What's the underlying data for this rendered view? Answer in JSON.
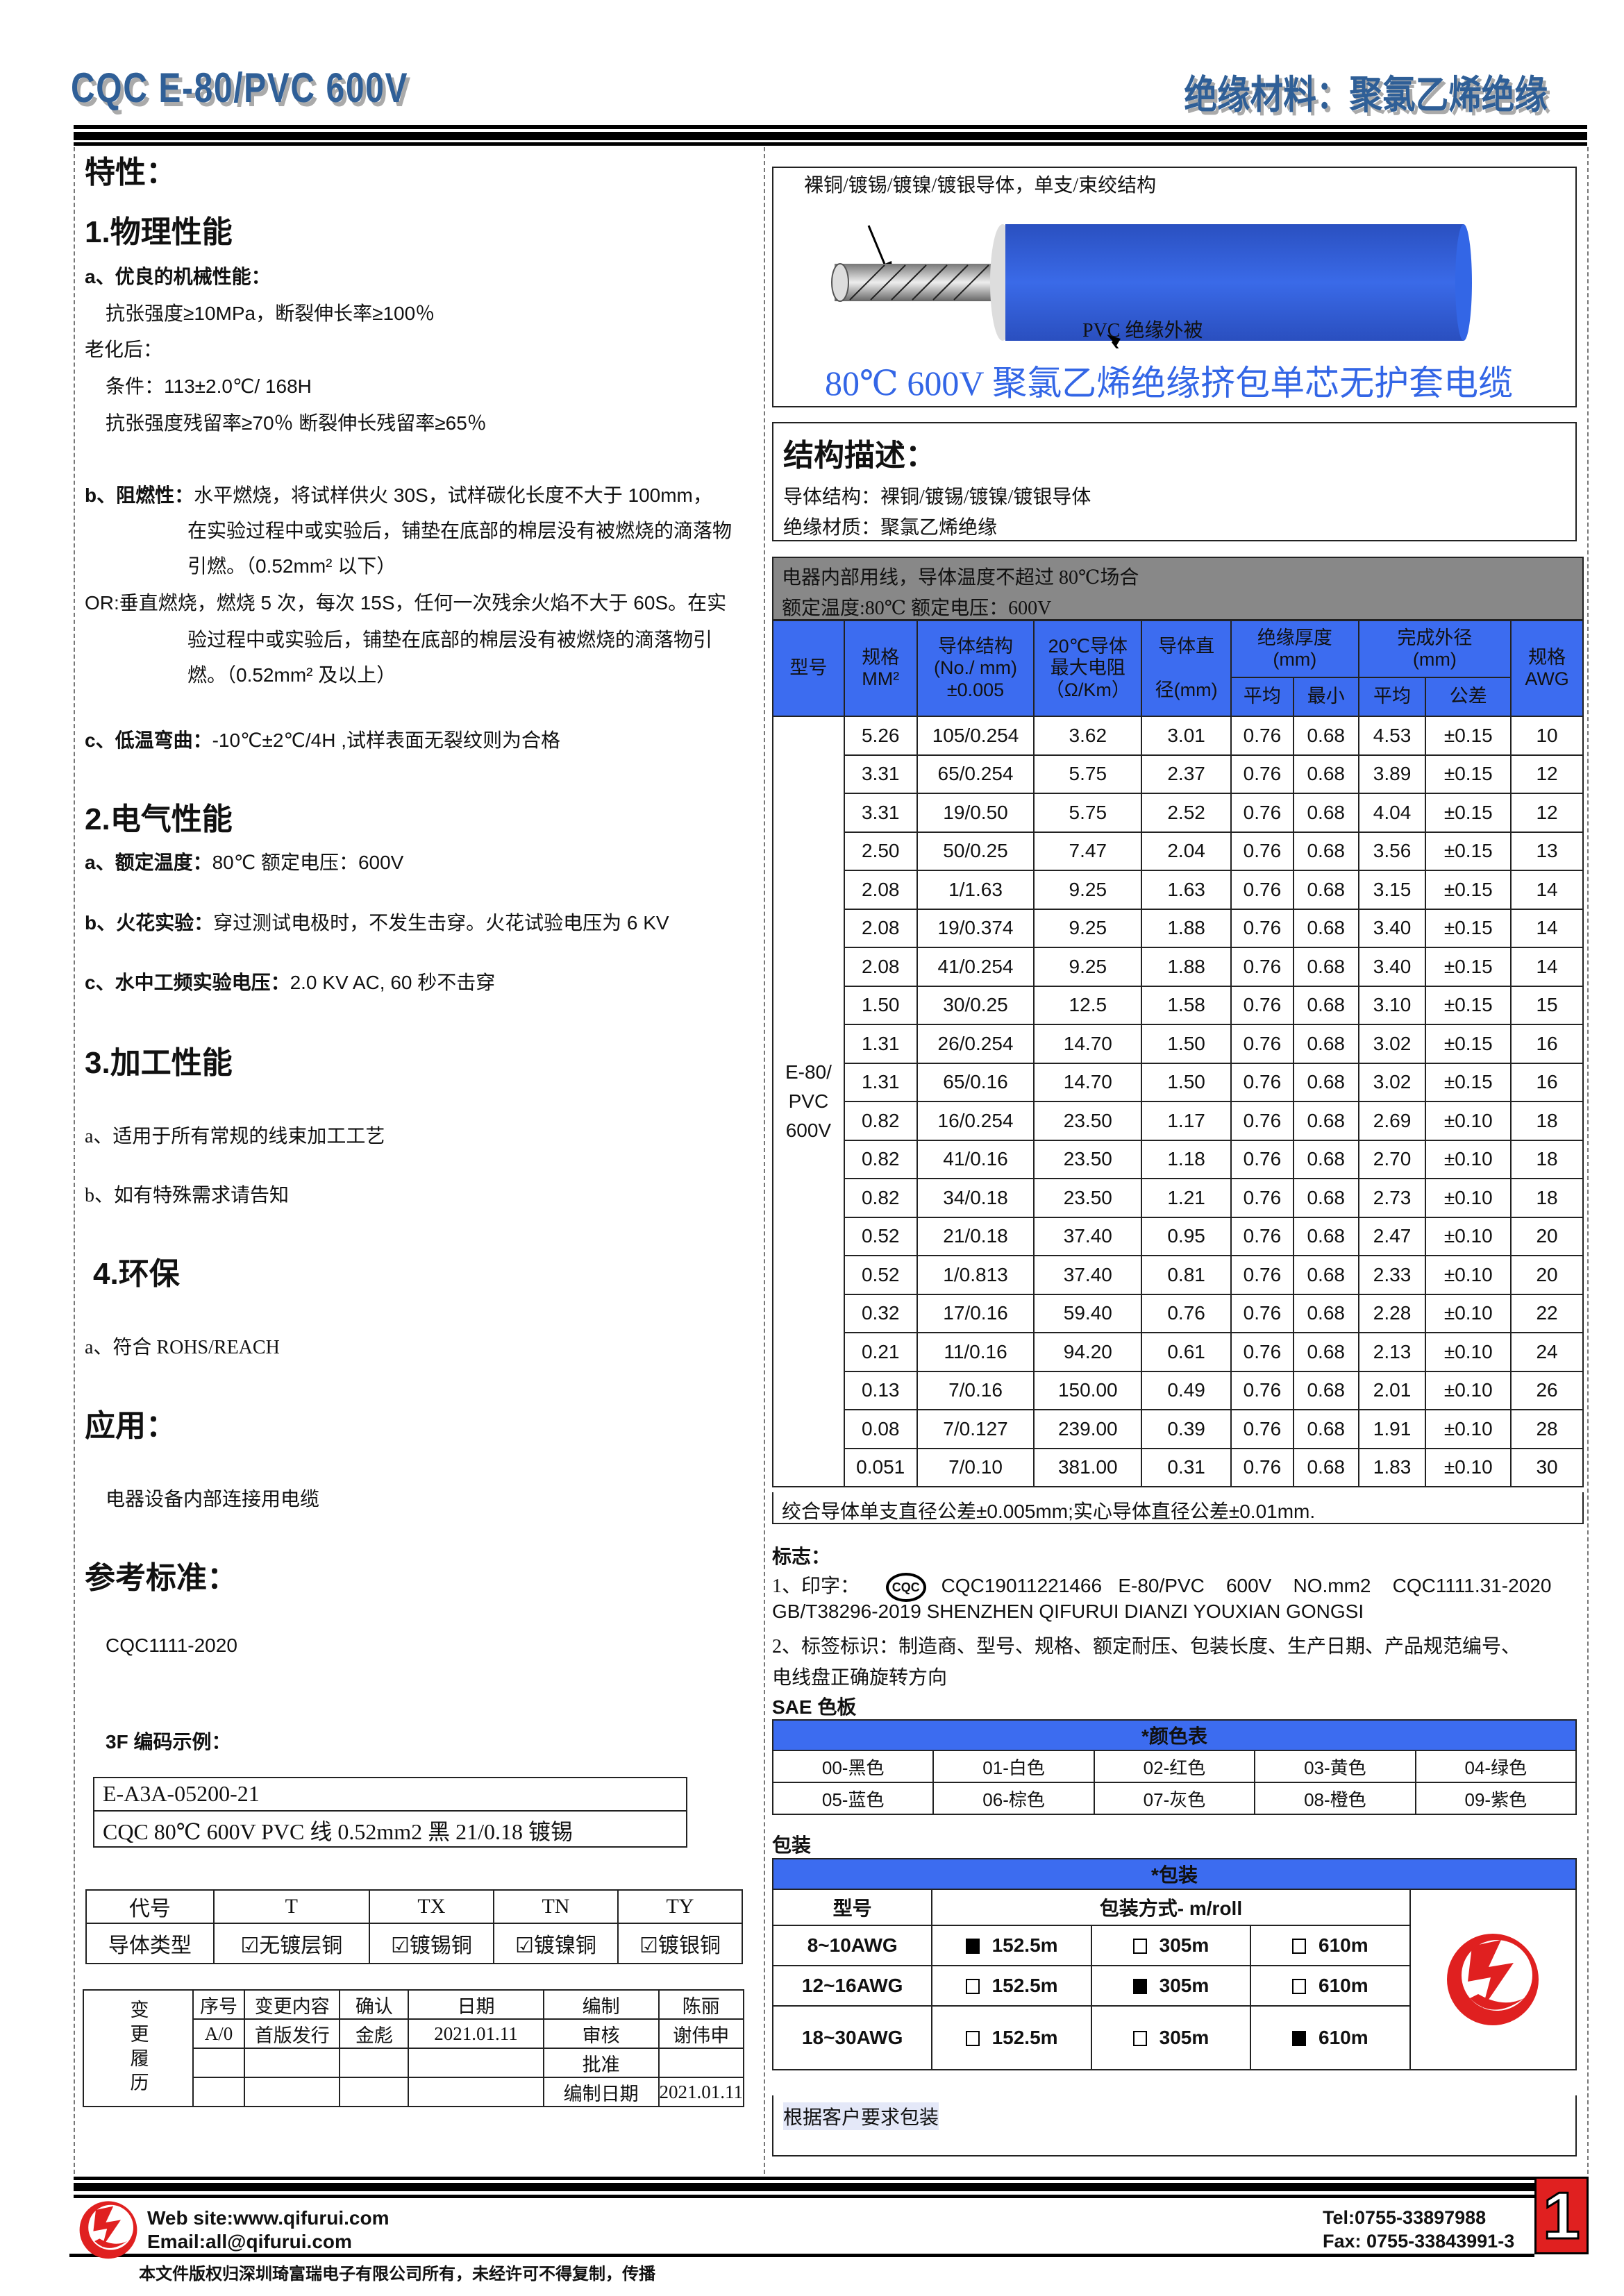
{
  "header": {
    "title": "CQC E-80/PVC 600V",
    "material": "绝缘材料：聚氯乙烯绝缘"
  },
  "left": {
    "features_title": "特性：",
    "s1": {
      "title": "1.物理性能",
      "a_title": "a、优良的机械性能：",
      "a1": "抗张强度≥10MPa，断裂伸长率≥100％",
      "a2": "老化后：",
      "a3": "条件：113±2.0℃/ 168H",
      "a4": "抗张强度残留率≥70％ 断裂伸长残留率≥65％",
      "b_label": "b、阻燃性：",
      "b1": "水平燃烧，将试样供火 30S，试样碳化长度不大于 100mm，",
      "b2": "在实验过程中或实验后，铺垫在底部的棉层没有被燃烧的滴落物",
      "b3": "引燃。（0.52mm² 以下）",
      "or1": "OR:垂直燃烧，燃烧 5 次，每次 15S，任何一次残余火焰不大于 60S。在实",
      "or2": "验过程中或实验后，铺垫在底部的棉层没有被燃烧的滴落物引",
      "or3": "燃。（0.52mm² 及以上）",
      "c_label": "c、低温弯曲：",
      "c1": "-10℃±2℃/4H ,试样表面无裂纹则为合格"
    },
    "s2": {
      "title": "2.电气性能",
      "a_label": "a、额定温度：",
      "a_text": "80℃   额定电压：600V",
      "b_label": "b、火花实验：",
      "b_text": "穿过测试电极时，不发生击穿。火花试验电压为 6 KV",
      "c_label": "c、水中工频实验电压：",
      "c_text": "2.0 KV AC, 60 秒不击穿"
    },
    "s3": {
      "title": "3.加工性能",
      "a": "a、适用于所有常规的线束加工工艺",
      "b": "b、如有特殊需求请告知"
    },
    "s4": {
      "title": "4.环保",
      "a": "a、符合 ROHS/REACH"
    },
    "app_title": "应用：",
    "app_text": "电器设备内部连接用电缆",
    "std_title": "参考标准：",
    "std_text": "CQC1111-2020",
    "code_title": "3F 编码示例：",
    "code_line1": "E-A3A-05200-21",
    "code_line2": "CQC 80℃  600V PVC 线  0.52mm2  黑  21/0.18 镀锡",
    "conductor_table": {
      "headers": [
        "代号",
        "T",
        "TX",
        "TN",
        "TY"
      ],
      "row_label": "导体类型",
      "types": [
        "无镀层铜",
        "镀锡铜",
        "镀镍铜",
        "镀银铜"
      ]
    },
    "history": {
      "side": "变更履历",
      "headers": [
        "序号",
        "变更内容",
        "确认",
        "日期"
      ],
      "row": [
        "A/0",
        "首版发行",
        "金彪",
        "2021.01.11"
      ],
      "roles": [
        [
          "编制",
          "陈丽"
        ],
        [
          "审核",
          "谢伟申"
        ],
        [
          "批准",
          ""
        ],
        [
          "编制日期",
          "2021.01.11"
        ]
      ]
    }
  },
  "right": {
    "illustration": {
      "conductor_label": "裸铜/镀锡/镀镍/镀银导体，单支/束绞结构",
      "insulation_label": "PVC  绝缘外被",
      "caption": "80℃  600V 聚氯乙烯绝缘挤包单芯无护套电缆",
      "insulation_color": "#3366e6"
    },
    "structure": {
      "title": "结构描述：",
      "line1": "导体结构：裸铜/镀锡/镀镍/镀银导体",
      "line2": "绝缘材质：聚氯乙烯绝缘"
    },
    "spec": {
      "note1": "电器内部用线，导体温度不超过  80℃场合",
      "note2": "额定温度:80℃  额定电压：600V",
      "headers": {
        "model": "型号",
        "size": "规格\nMM²",
        "structure": "导体结构\n(No./ mm)\n±0.005",
        "resistance": "20℃导体\n最大电阻\n（Ω/Km）",
        "diameter": "导体直\n\n径(mm)",
        "insulation": "绝缘厚度\n(mm)",
        "od": "完成外径\n(mm)",
        "avg": "平均",
        "min": "最小",
        "avg2": "平均",
        "tol": "公差",
        "awg": "规格\nAWG"
      },
      "model": "E-80/\nPVC\n600V",
      "rows": [
        [
          "5.26",
          "105/0.254",
          "3.62",
          "3.01",
          "0.76",
          "0.68",
          "4.53",
          "±0.15",
          "10"
        ],
        [
          "3.31",
          "65/0.254",
          "5.75",
          "2.37",
          "0.76",
          "0.68",
          "3.89",
          "±0.15",
          "12"
        ],
        [
          "3.31",
          "19/0.50",
          "5.75",
          "2.52",
          "0.76",
          "0.68",
          "4.04",
          "±0.15",
          "12"
        ],
        [
          "2.50",
          "50/0.25",
          "7.47",
          "2.04",
          "0.76",
          "0.68",
          "3.56",
          "±0.15",
          "13"
        ],
        [
          "2.08",
          "1/1.63",
          "9.25",
          "1.63",
          "0.76",
          "0.68",
          "3.15",
          "±0.15",
          "14"
        ],
        [
          "2.08",
          "19/0.374",
          "9.25",
          "1.88",
          "0.76",
          "0.68",
          "3.40",
          "±0.15",
          "14"
        ],
        [
          "2.08",
          "41/0.254",
          "9.25",
          "1.88",
          "0.76",
          "0.68",
          "3.40",
          "±0.15",
          "14"
        ],
        [
          "1.50",
          "30/0.25",
          "12.5",
          "1.58",
          "0.76",
          "0.68",
          "3.10",
          "±0.15",
          "15"
        ],
        [
          "1.31",
          "26/0.254",
          "14.70",
          "1.50",
          "0.76",
          "0.68",
          "3.02",
          "±0.15",
          "16"
        ],
        [
          "1.31",
          "65/0.16",
          "14.70",
          "1.50",
          "0.76",
          "0.68",
          "3.02",
          "±0.15",
          "16"
        ],
        [
          "0.82",
          "16/0.254",
          "23.50",
          "1.17",
          "0.76",
          "0.68",
          "2.69",
          "±0.10",
          "18"
        ],
        [
          "0.82",
          "41/0.16",
          "23.50",
          "1.18",
          "0.76",
          "0.68",
          "2.70",
          "±0.10",
          "18"
        ],
        [
          "0.82",
          "34/0.18",
          "23.50",
          "1.21",
          "0.76",
          "0.68",
          "2.73",
          "±0.10",
          "18"
        ],
        [
          "0.52",
          "21/0.18",
          "37.40",
          "0.95",
          "0.76",
          "0.68",
          "2.47",
          "±0.10",
          "20"
        ],
        [
          "0.52",
          "1/0.813",
          "37.40",
          "0.81",
          "0.76",
          "0.68",
          "2.33",
          "±0.10",
          "20"
        ],
        [
          "0.32",
          "17/0.16",
          "59.40",
          "0.76",
          "0.76",
          "0.68",
          "2.28",
          "±0.10",
          "22"
        ],
        [
          "0.21",
          "11/0.16",
          "94.20",
          "0.61",
          "0.76",
          "0.68",
          "2.13",
          "±0.10",
          "24"
        ],
        [
          "0.13",
          "7/0.16",
          "150.00",
          "0.49",
          "0.76",
          "0.68",
          "2.01",
          "±0.10",
          "26"
        ],
        [
          "0.08",
          "7/0.127",
          "239.00",
          "0.39",
          "0.76",
          "0.68",
          "1.91",
          "±0.10",
          "28"
        ],
        [
          "0.051",
          "7/0.10",
          "381.00",
          "0.31",
          "0.76",
          "0.68",
          "1.83",
          "±0.10",
          "30"
        ]
      ],
      "footnote": "绞合导体单支直径公差±0.005mm;实心导体直径公差±0.01mm."
    },
    "marking": {
      "title": "标志：",
      "l1_prefix": "1、印字：",
      "cqc_logo": "CQC",
      "l1_text": "CQC19011221466   E-80/PVC    600V    NO.mm2    CQC1111.31-2020",
      "l2": "GB/T38296-2019 SHENZHEN QIFURUI DIANZI YOUXIAN GONGSI",
      "l3": "2、标签标识：制造商、型号、规格、额定耐压、包装长度、生产日期、产品规范编号、",
      "l4": "电线盘正确旋转方向"
    },
    "colors": {
      "title": "SAE 色板",
      "header": "*颜色表",
      "items": [
        "00-黑色",
        "01-白色",
        "02-红色",
        "03-黄色",
        "04-绿色",
        "05-蓝色",
        "06-棕色",
        "07-灰色",
        "08-橙色",
        "09-紫色"
      ]
    },
    "packing": {
      "title": "包装",
      "header": "*包装",
      "col_model": "型号",
      "col_method": "包装方式- m/roll",
      "rows": [
        {
          "model": "8~10AWG",
          "opts": [
            "152.5m",
            "305m",
            "610m"
          ],
          "selected": 0
        },
        {
          "model": "12~16AWG",
          "opts": [
            "152.5m",
            "305m",
            "610m"
          ],
          "selected": 1
        },
        {
          "model": "18~30AWG",
          "opts": [
            "152.5m",
            "305m",
            "610m"
          ],
          "selected": 2
        }
      ],
      "note": "根据客户要求包装"
    }
  },
  "footer": {
    "website": "Web site:www.qifurui.com",
    "email": "Email:all@qifurui.com",
    "tel": "Tel:0755-33897988",
    "fax": "Fax: 0755-33843991-3",
    "copyright": "本文件版权归深圳琦富瑞电子有限公司所有，未经许可不得复制，传播",
    "page": "1",
    "brand_color": "#e02020"
  }
}
